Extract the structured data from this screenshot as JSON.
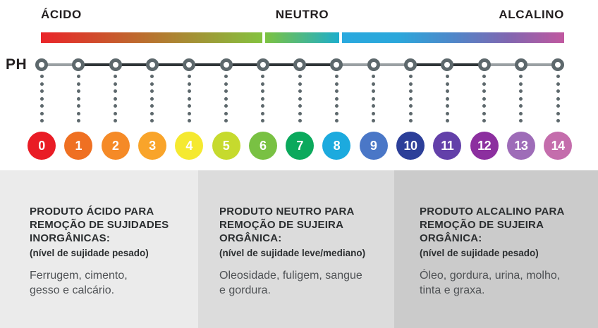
{
  "header": {
    "acid_label": "ÁCIDO",
    "neutral_label": "NEUTRO",
    "alkaline_label": "ALCALINO"
  },
  "scale": {
    "ph_label": "PH",
    "bar": {
      "acid_stops": [
        "#ea2429",
        "#b7742f",
        "#84c23f"
      ],
      "neutral_stops": [
        "#7cc241",
        "#1eaecb"
      ],
      "alkaline_stops": [
        "#29a9de",
        "#2ba7db",
        "#4f87c9",
        "#8166b0",
        "#c0589f"
      ]
    },
    "line_segments": [
      "gray",
      "dark",
      "dark",
      "dark",
      "dark",
      "dark",
      "dark",
      "dark",
      "gray",
      "gray",
      "dark",
      "dark",
      "gray",
      "gray"
    ],
    "line_colors": {
      "dark": "#2e3437",
      "gray": "#9aa0a3"
    },
    "marker_color": "#5d686c",
    "dot_color": "#5d686c",
    "dots_per_column": 7,
    "points": [
      {
        "value": "0",
        "color": "#e91c25"
      },
      {
        "value": "1",
        "color": "#ef7022"
      },
      {
        "value": "2",
        "color": "#f58a27"
      },
      {
        "value": "3",
        "color": "#f9a42a"
      },
      {
        "value": "4",
        "color": "#f5e930"
      },
      {
        "value": "5",
        "color": "#c6da2e"
      },
      {
        "value": "6",
        "color": "#79c143"
      },
      {
        "value": "7",
        "color": "#0ba95c"
      },
      {
        "value": "8",
        "color": "#1caade"
      },
      {
        "value": "9",
        "color": "#4a77c7"
      },
      {
        "value": "10",
        "color": "#2c3f99"
      },
      {
        "value": "11",
        "color": "#6340a9"
      },
      {
        "value": "12",
        "color": "#8c2f9f"
      },
      {
        "value": "13",
        "color": "#9e6cb8"
      },
      {
        "value": "14",
        "color": "#c46dac"
      }
    ]
  },
  "panels": [
    {
      "title": "PRODUTO ÁCIDO PARA\nREMOÇÃO DE SUJIDADES\nINORGÂNICAS:",
      "level": "(nível de sujidade pesado)",
      "body": "Ferrugem, cimento,\ngesso e calcário."
    },
    {
      "title": "PRODUTO NEUTRO PARA\nREMOÇÃO DE SUJEIRA\nORGÂNICA:",
      "level": "(nível de sujidade leve/mediano)",
      "body": "Oleosidade, fuligem, sangue\ne gordura."
    },
    {
      "title": "PRODUTO ALCALINO PARA\nREMOÇÃO DE SUJEIRA\nORGÂNICA:",
      "level": "(nível de sujidade pesado)",
      "body": "Óleo, gordura, urina, molho,\ntinta e graxa."
    }
  ]
}
